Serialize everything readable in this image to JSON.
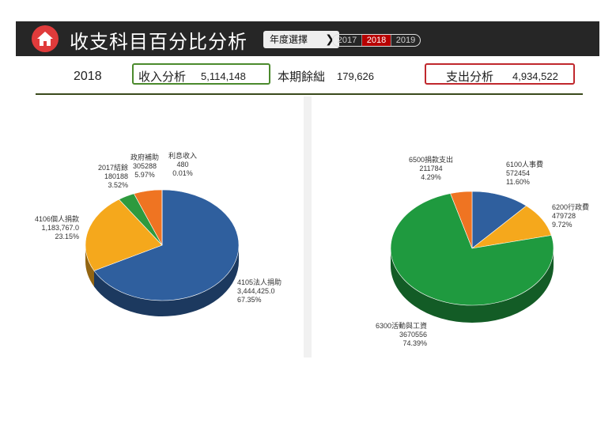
{
  "header": {
    "title": "收支科目百分比分析",
    "year_button": "年度選擇",
    "years": [
      "2017",
      "2018",
      "2019"
    ],
    "selected_year": "2018"
  },
  "summary": {
    "year": "2018",
    "income_label": "收入分析",
    "income_value": "5,114,148",
    "balance_label": "本期餘絀",
    "balance_value": "179,626",
    "expense_label": "支出分析",
    "expense_value": "4,934,522"
  },
  "chart_data": [
    {
      "type": "pie",
      "title": "",
      "slices": [
        {
          "name": "4105法人捐助",
          "value_text": "3,444,425.0",
          "percent_text": "67.35%",
          "percent": 67.35,
          "color": "#2f5f9e"
        },
        {
          "name": "4106個人捐款",
          "value_text": "1,183,767.0",
          "percent_text": "23.15%",
          "percent": 23.15,
          "color": "#f5a81c"
        },
        {
          "name": "2017結餘",
          "value_text": "180188",
          "percent_text": "3.52%",
          "percent": 3.52,
          "color": "#2e9a3e"
        },
        {
          "name": "政府補助",
          "value_text": "305288",
          "percent_text": "5.97%",
          "percent": 5.97,
          "color": "#ef7422"
        },
        {
          "name": "利息收入",
          "value_text": "480",
          "percent_text": "0.01%",
          "percent": 0.01,
          "color": "#8a8a8a"
        }
      ]
    },
    {
      "type": "pie",
      "title": "",
      "slices": [
        {
          "name": "6100人事費",
          "value_text": "572454",
          "percent_text": "11.60%",
          "percent": 11.6,
          "color": "#2f5f9e"
        },
        {
          "name": "6200行政費",
          "value_text": "479728",
          "percent_text": "9.72%",
          "percent": 9.72,
          "color": "#f5a81c"
        },
        {
          "name": "6300活動與工資",
          "value_text": "3670556",
          "percent_text": "74.39%",
          "percent": 74.39,
          "color": "#1f9a3f"
        },
        {
          "name": "6500捐款支出",
          "value_text": "211784",
          "percent_text": "4.29%",
          "percent": 4.29,
          "color": "#ef7422"
        }
      ]
    }
  ]
}
